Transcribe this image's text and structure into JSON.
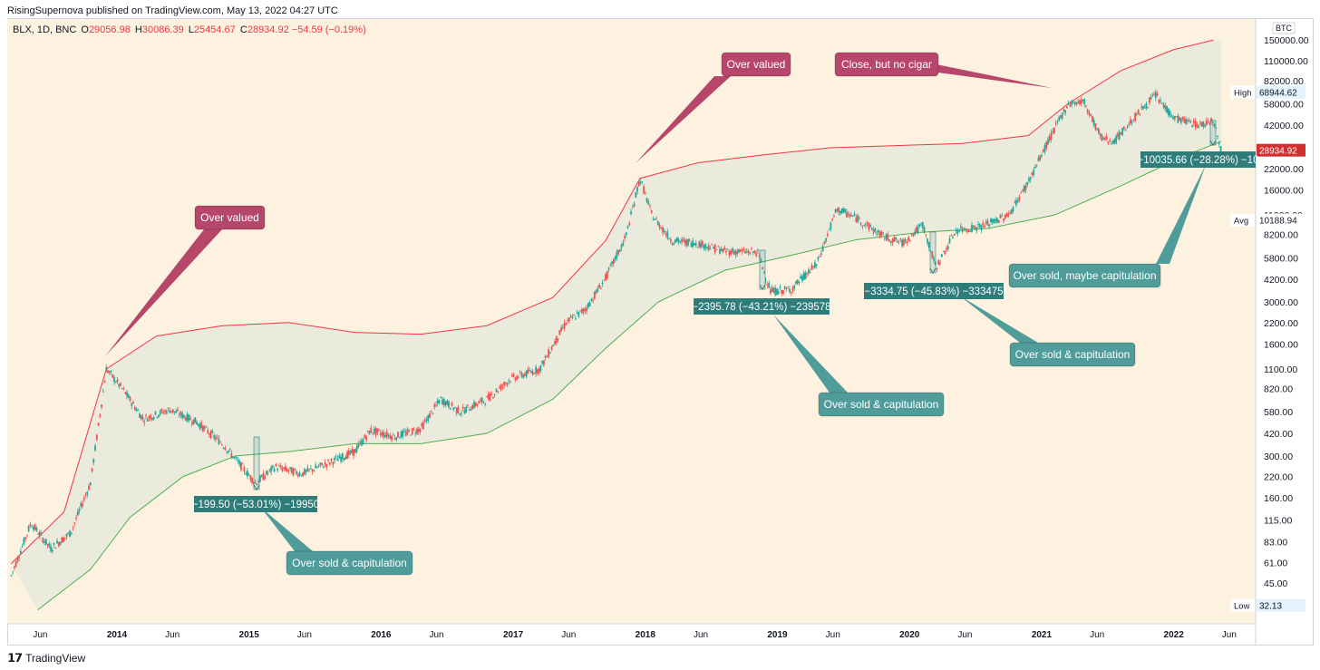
{
  "header": {
    "text": "RisingSupernova published on TradingView.com, May 13, 2022 04:27 UTC"
  },
  "legend": {
    "symbol": "BLX, 1D, BNC",
    "o_label": "O",
    "o": "29056.98",
    "h_label": "H",
    "h": "30086.39",
    "l_label": "L",
    "l": "25454.67",
    "c_label": "C",
    "c": "28934.92",
    "change": "−54.59 (−0.19%)"
  },
  "footer": {
    "logo": "𝟭𝟳",
    "brand": "TradingView"
  },
  "colors": {
    "background": "#fdf1e0",
    "band_fill": "#e8eadc",
    "upper_band": "#f23645",
    "lower_band": "#4caf50",
    "red_callout": "#b6476a",
    "teal_callout": "#2e7d7b",
    "teal_callout_light": "#4f9c9a",
    "price_tag": "#d32f2f"
  },
  "chart_data": {
    "type": "line",
    "scale": "log",
    "title": "",
    "y_unit": "BTC",
    "price_axis_ticks": [
      "150000.00",
      "110000.00",
      "82000.00",
      "58000.00",
      "42000.00",
      "22000.00",
      "16000.00",
      "11000.00",
      "8200.00",
      "5800.00",
      "4200.00",
      "3000.00",
      "2200.00",
      "1600.00",
      "1100.00",
      "820.00",
      "580.00",
      "420.00",
      "300.00",
      "220.00",
      "160.00",
      "115.00",
      "83.00",
      "61.00",
      "45.00"
    ],
    "time_axis_labels": [
      "Jun",
      "2014",
      "Jun",
      "2015",
      "Jun",
      "2016",
      "Jun",
      "2017",
      "Jun",
      "2018",
      "Jun",
      "2019",
      "Jun",
      "2020",
      "Jun",
      "2021",
      "Jun",
      "2022",
      "Jun"
    ],
    "price_tags": {
      "high_label": "High",
      "high": "68944.62",
      "last": "28934.92",
      "avg_label": "Avg",
      "avg": "10188.94",
      "low_label": "Low",
      "low": "32.13"
    },
    "series": [
      {
        "name": "BTC price",
        "points": [
          [
            2013.2,
            50
          ],
          [
            2013.35,
            110
          ],
          [
            2013.5,
            75
          ],
          [
            2013.65,
            95
          ],
          [
            2013.8,
            200
          ],
          [
            2013.92,
            1100
          ],
          [
            2014.05,
            800
          ],
          [
            2014.2,
            520
          ],
          [
            2014.4,
            600
          ],
          [
            2014.6,
            500
          ],
          [
            2014.8,
            360
          ],
          [
            2015.05,
            200
          ],
          [
            2015.2,
            255
          ],
          [
            2015.4,
            230
          ],
          [
            2015.6,
            270
          ],
          [
            2015.8,
            320
          ],
          [
            2015.92,
            440
          ],
          [
            2016.1,
            400
          ],
          [
            2016.3,
            450
          ],
          [
            2016.45,
            700
          ],
          [
            2016.6,
            580
          ],
          [
            2016.8,
            700
          ],
          [
            2016.98,
            950
          ],
          [
            2017.2,
            1100
          ],
          [
            2017.4,
            2200
          ],
          [
            2017.55,
            2700
          ],
          [
            2017.7,
            4300
          ],
          [
            2017.85,
            7800
          ],
          [
            2017.96,
            19000
          ],
          [
            2018.05,
            11000
          ],
          [
            2018.2,
            7500
          ],
          [
            2018.4,
            7200
          ],
          [
            2018.6,
            6400
          ],
          [
            2018.85,
            6300
          ],
          [
            2018.95,
            3500
          ],
          [
            2019.1,
            3600
          ],
          [
            2019.3,
            5300
          ],
          [
            2019.45,
            12000
          ],
          [
            2019.6,
            10500
          ],
          [
            2019.8,
            8000
          ],
          [
            2019.95,
            7200
          ],
          [
            2020.1,
            9500
          ],
          [
            2020.2,
            5000
          ],
          [
            2020.35,
            8700
          ],
          [
            2020.55,
            9300
          ],
          [
            2020.75,
            11000
          ],
          [
            2020.9,
            18000
          ],
          [
            2021.05,
            33000
          ],
          [
            2021.2,
            58000
          ],
          [
            2021.32,
            60000
          ],
          [
            2021.45,
            35000
          ],
          [
            2021.55,
            33000
          ],
          [
            2021.7,
            47000
          ],
          [
            2021.86,
            66000
          ],
          [
            2022.0,
            47000
          ],
          [
            2022.2,
            42000
          ],
          [
            2022.3,
            46000
          ],
          [
            2022.36,
            28934.92
          ]
        ]
      },
      {
        "name": "Upper band",
        "points": [
          [
            2013.2,
            60
          ],
          [
            2013.6,
            130
          ],
          [
            2013.92,
            1100
          ],
          [
            2014.3,
            1800
          ],
          [
            2014.8,
            2100
          ],
          [
            2015.3,
            2200
          ],
          [
            2015.8,
            1900
          ],
          [
            2016.3,
            1850
          ],
          [
            2016.8,
            2100
          ],
          [
            2017.3,
            3200
          ],
          [
            2017.7,
            7500
          ],
          [
            2017.96,
            19000
          ],
          [
            2018.4,
            24000
          ],
          [
            2018.9,
            27000
          ],
          [
            2019.4,
            30000
          ],
          [
            2019.9,
            31000
          ],
          [
            2020.4,
            32000
          ],
          [
            2020.9,
            36000
          ],
          [
            2021.2,
            58000
          ],
          [
            2021.6,
            95000
          ],
          [
            2022.0,
            130000
          ],
          [
            2022.3,
            150000
          ]
        ]
      },
      {
        "name": "Lower band",
        "points": [
          [
            2013.4,
            30
          ],
          [
            2013.8,
            55
          ],
          [
            2014.1,
            120
          ],
          [
            2014.5,
            220
          ],
          [
            2014.9,
            300
          ],
          [
            2015.3,
            320
          ],
          [
            2015.8,
            360
          ],
          [
            2016.3,
            360
          ],
          [
            2016.8,
            420
          ],
          [
            2017.3,
            700
          ],
          [
            2017.7,
            1500
          ],
          [
            2018.1,
            3000
          ],
          [
            2018.6,
            4800
          ],
          [
            2019.1,
            6000
          ],
          [
            2019.6,
            7600
          ],
          [
            2020.1,
            8500
          ],
          [
            2020.6,
            9000
          ],
          [
            2021.1,
            11000
          ],
          [
            2021.6,
            17000
          ],
          [
            2022.1,
            27000
          ],
          [
            2022.36,
            33000
          ]
        ]
      }
    ],
    "annotations": [
      {
        "id": "ov1",
        "kind": "red",
        "text": "Over valued",
        "target_year": 2013.92,
        "target_price": 1100
      },
      {
        "id": "ov2",
        "kind": "red",
        "text": "Over valued",
        "target_year": 2017.96,
        "target_price": 19000
      },
      {
        "id": "cbnc",
        "kind": "red",
        "text": "Close, but no cigar",
        "target_year": 2021.2,
        "target_price": 58000
      },
      {
        "id": "m1",
        "kind": "measure",
        "text": "−199.50 (−53.01%) −19950"
      },
      {
        "id": "m2",
        "kind": "measure",
        "text": "−2395.78 (−43.21%) −239578"
      },
      {
        "id": "m3",
        "kind": "measure",
        "text": "−3334.75 (−45.83%) −333475"
      },
      {
        "id": "m4",
        "kind": "measure",
        "text": "−10035.66 (−28.28%) −10"
      },
      {
        "id": "os1",
        "kind": "teal",
        "text": "Over sold & capitulation"
      },
      {
        "id": "os2",
        "kind": "teal",
        "text": "Over sold & capitulation"
      },
      {
        "id": "os3",
        "kind": "teal",
        "text": "Over sold & capitulation"
      },
      {
        "id": "os4",
        "kind": "teal",
        "text": "Over sold, maybe capitulation"
      }
    ]
  }
}
